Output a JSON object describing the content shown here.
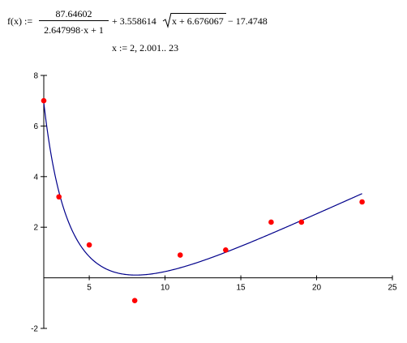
{
  "formula": {
    "lhs": "f(x) :=",
    "numerator": "87.64602",
    "denominator": "2.647998·x + 1",
    "middle": "+ 3.558614",
    "radicand": "x + 6.676067",
    "tail": "− 17.4748",
    "range": "x := 2, 2.001.. 23"
  },
  "chart_data": {
    "type": "scatter",
    "title": "",
    "xlabel": "",
    "ylabel": "",
    "xlim": [
      2,
      25
    ],
    "ylim": [
      -2,
      8
    ],
    "x_ticks": [
      "5",
      "10",
      "15",
      "20",
      "25"
    ],
    "y_ticks": [
      "-2",
      "2",
      "4",
      "6",
      "8"
    ],
    "series": [
      {
        "type": "scatter",
        "color": "#ff0000",
        "points": [
          [
            2,
            7.0
          ],
          [
            3,
            3.2
          ],
          [
            5,
            1.3
          ],
          [
            8,
            -0.9
          ],
          [
            11,
            0.9
          ],
          [
            14,
            1.1
          ],
          [
            17,
            2.2
          ],
          [
            19,
            2.2
          ],
          [
            23,
            3.0
          ]
        ]
      },
      {
        "type": "line",
        "color": "#00008b",
        "function": "87.64602/(2.647998*x+1) + 3.558614*sqrt(x+6.676067) - 17.4748",
        "x_range": [
          2,
          23
        ]
      }
    ]
  }
}
